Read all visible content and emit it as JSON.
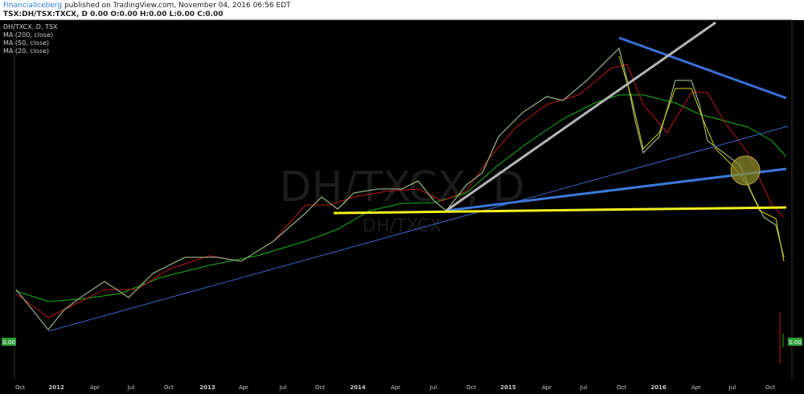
{
  "header": {
    "author": "FinancialIceberg",
    "published": "published on TradingView.com, November 04, 2016 06:56 EDT",
    "symbol_line": "TSX:DH/TSX:TXCX, D 0.00 O:0.00 H:0.00 L:0.00 C:0.00"
  },
  "legend": [
    "DH/TXCX, D, TSX",
    "MA (200, close)",
    "MA (50, close)",
    "MA (20, close)"
  ],
  "watermark": {
    "main": "DH/TXCX, D",
    "sub": "DH/TXCX"
  },
  "price_labels": {
    "left": "0.00",
    "right": "0.00"
  },
  "x_axis": [
    "Oct",
    "2012",
    "Apr",
    "Jul",
    "Oct",
    "2013",
    "Apr",
    "Jul",
    "Oct",
    "2014",
    "Apr",
    "Jul",
    "Oct",
    "2015",
    "Apr",
    "Jul",
    "Oct",
    "2016",
    "Apr",
    "Jul",
    "Oct"
  ]
}
